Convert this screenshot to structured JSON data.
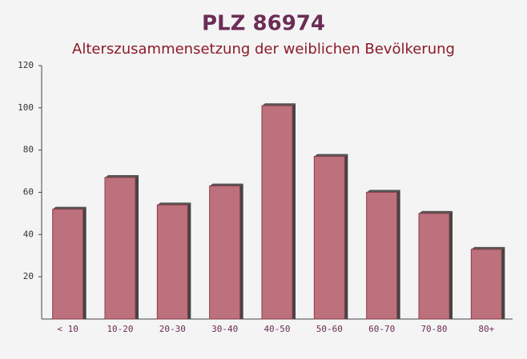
{
  "chart_data": {
    "type": "bar",
    "title": "PLZ 86974",
    "subtitle": "Alterszusammensetzung der weiblichen Bevölkerung",
    "categories": [
      "< 10",
      "10-20",
      "20-30",
      "30-40",
      "40-50",
      "50-60",
      "60-70",
      "70-80",
      "80+"
    ],
    "values": [
      52,
      67,
      54,
      63,
      101,
      77,
      60,
      50,
      33
    ],
    "color": "#b7636f",
    "ylim": [
      0,
      120
    ],
    "yticks": [
      20,
      40,
      60,
      80,
      100,
      120
    ],
    "grid": false
  }
}
